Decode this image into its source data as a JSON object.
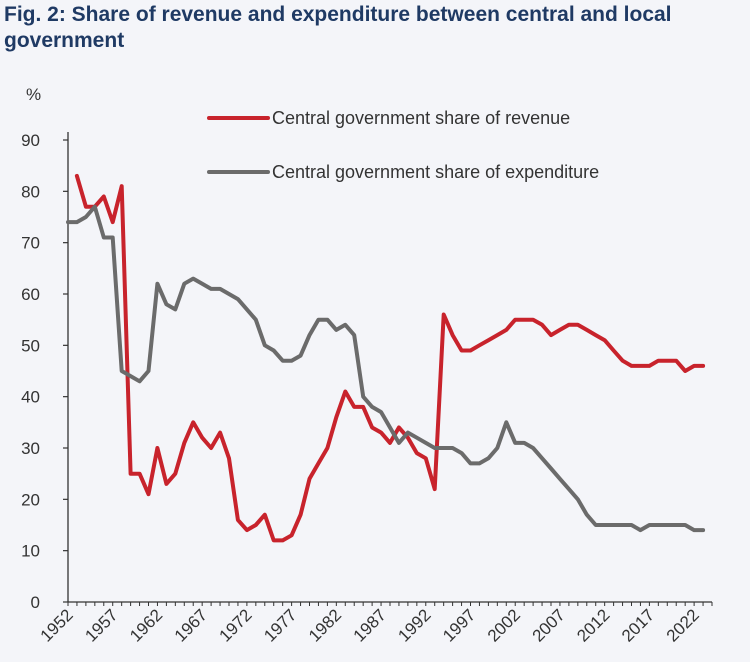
{
  "chart_data": {
    "type": "line",
    "title": "Fig. 2: Share of revenue and expenditure between central and local government",
    "ylabel": "%",
    "xlabel": "",
    "ylim": [
      0,
      90
    ],
    "y_ticks": [
      0,
      10,
      20,
      30,
      40,
      50,
      60,
      70,
      80,
      90
    ],
    "xlim": [
      1952,
      2024
    ],
    "x_tick_labels": [
      "1952",
      "1957",
      "1962",
      "1967",
      "1972",
      "1977",
      "1982",
      "1987",
      "1992",
      "1997",
      "2002",
      "2007",
      "2012",
      "2017",
      "2022"
    ],
    "grid": false,
    "legend_position": "top-right",
    "series": [
      {
        "name": "Central government share of revenue",
        "color": "#c8232c",
        "x": [
          1953,
          1954,
          1955,
          1956,
          1957,
          1958,
          1959,
          1960,
          1961,
          1962,
          1963,
          1964,
          1965,
          1966,
          1967,
          1968,
          1969,
          1970,
          1971,
          1972,
          1973,
          1974,
          1975,
          1976,
          1977,
          1978,
          1979,
          1980,
          1981,
          1982,
          1983,
          1984,
          1985,
          1986,
          1987,
          1988,
          1989,
          1990,
          1991,
          1992,
          1993,
          1994,
          1995,
          1996,
          1997,
          1998,
          1999,
          2000,
          2001,
          2002,
          2003,
          2004,
          2005,
          2006,
          2007,
          2008,
          2009,
          2010,
          2011,
          2012,
          2013,
          2014,
          2015,
          2016,
          2017,
          2018,
          2019,
          2020,
          2021,
          2022,
          2023
        ],
        "values": [
          83,
          77,
          77,
          79,
          74,
          81,
          25,
          25,
          21,
          30,
          23,
          25,
          31,
          35,
          32,
          30,
          33,
          28,
          16,
          14,
          15,
          17,
          12,
          12,
          13,
          17,
          24,
          27,
          30,
          36,
          41,
          38,
          38,
          34,
          33,
          31,
          34,
          32,
          29,
          28,
          22,
          56,
          52,
          49,
          49,
          50,
          51,
          52,
          53,
          55,
          55,
          55,
          54,
          52,
          53,
          54,
          54,
          53,
          52,
          51,
          49,
          47,
          46,
          46,
          46,
          47,
          47,
          47,
          45,
          46,
          46
        ]
      },
      {
        "name": "Central government share of expenditure",
        "color": "#6b6b6b",
        "x": [
          1952,
          1953,
          1954,
          1955,
          1956,
          1957,
          1958,
          1959,
          1960,
          1961,
          1962,
          1963,
          1964,
          1965,
          1966,
          1967,
          1968,
          1969,
          1970,
          1971,
          1972,
          1973,
          1974,
          1975,
          1976,
          1977,
          1978,
          1979,
          1980,
          1981,
          1982,
          1983,
          1984,
          1985,
          1986,
          1987,
          1988,
          1989,
          1990,
          1991,
          1992,
          1993,
          1994,
          1995,
          1996,
          1997,
          1998,
          1999,
          2000,
          2001,
          2002,
          2003,
          2004,
          2005,
          2006,
          2007,
          2008,
          2009,
          2010,
          2011,
          2012,
          2013,
          2014,
          2015,
          2016,
          2017,
          2018,
          2019,
          2020,
          2021,
          2022,
          2023
        ],
        "values": [
          74,
          74,
          75,
          77,
          71,
          71,
          45,
          44,
          43,
          45,
          62,
          58,
          57,
          62,
          63,
          62,
          61,
          61,
          60,
          59,
          57,
          55,
          50,
          49,
          47,
          47,
          48,
          52,
          55,
          55,
          53,
          54,
          52,
          40,
          38,
          37,
          34,
          31,
          33,
          32,
          31,
          30,
          30,
          30,
          29,
          27,
          27,
          28,
          30,
          35,
          31,
          31,
          30,
          28,
          26,
          24,
          22,
          20,
          17,
          15,
          15,
          15,
          15,
          15,
          14,
          15,
          15,
          15,
          15,
          15,
          14,
          14
        ]
      }
    ]
  }
}
